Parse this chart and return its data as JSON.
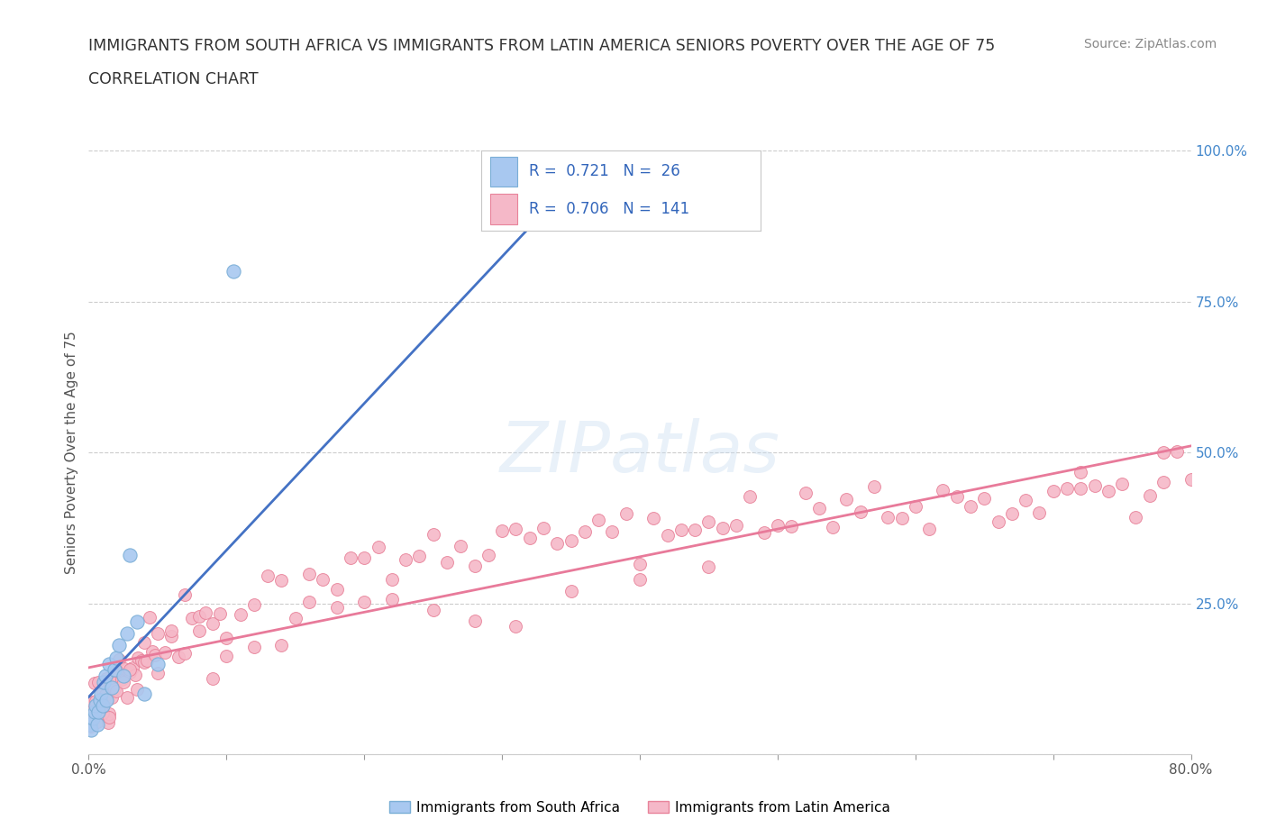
{
  "title_line1": "IMMIGRANTS FROM SOUTH AFRICA VS IMMIGRANTS FROM LATIN AMERICA SENIORS POVERTY OVER THE AGE OF 75",
  "title_line2": "CORRELATION CHART",
  "source_text": "Source: ZipAtlas.com",
  "ylabel": "Seniors Poverty Over the Age of 75",
  "xlim": [
    0.0,
    0.8
  ],
  "ylim": [
    0.0,
    1.0
  ],
  "south_africa_R": 0.721,
  "south_africa_N": 26,
  "latin_america_R": 0.706,
  "latin_america_N": 141,
  "south_africa_color": "#a8c8f0",
  "south_africa_edge": "#7aaed6",
  "latin_america_color": "#f5b8c8",
  "latin_america_edge": "#e8839a",
  "south_africa_line_color": "#4472c4",
  "latin_america_line_color": "#e87a9a",
  "background_color": "#ffffff",
  "grid_color": "#cccccc",
  "sa_x": [
    0.001,
    0.002,
    0.003,
    0.004,
    0.005,
    0.006,
    0.007,
    0.008,
    0.009,
    0.01,
    0.011,
    0.012,
    0.013,
    0.015,
    0.017,
    0.019,
    0.02,
    0.022,
    0.025,
    0.028,
    0.03,
    0.035,
    0.04,
    0.05,
    0.105,
    0.38
  ],
  "sa_y": [
    0.05,
    0.04,
    0.06,
    0.07,
    0.08,
    0.05,
    0.07,
    0.09,
    0.1,
    0.08,
    0.12,
    0.13,
    0.09,
    0.15,
    0.11,
    0.14,
    0.16,
    0.18,
    0.13,
    0.2,
    0.33,
    0.22,
    0.1,
    0.15,
    0.8,
    0.9
  ],
  "la_x": [
    0.001,
    0.002,
    0.003,
    0.004,
    0.005,
    0.006,
    0.007,
    0.008,
    0.009,
    0.01,
    0.011,
    0.012,
    0.013,
    0.014,
    0.015,
    0.016,
    0.017,
    0.018,
    0.019,
    0.02,
    0.022,
    0.024,
    0.026,
    0.028,
    0.03,
    0.032,
    0.034,
    0.036,
    0.038,
    0.04,
    0.042,
    0.044,
    0.046,
    0.048,
    0.05,
    0.055,
    0.06,
    0.065,
    0.07,
    0.075,
    0.08,
    0.085,
    0.09,
    0.095,
    0.1,
    0.11,
    0.12,
    0.13,
    0.14,
    0.15,
    0.16,
    0.17,
    0.18,
    0.19,
    0.2,
    0.21,
    0.22,
    0.23,
    0.24,
    0.25,
    0.26,
    0.27,
    0.28,
    0.29,
    0.3,
    0.31,
    0.32,
    0.33,
    0.34,
    0.35,
    0.36,
    0.37,
    0.38,
    0.39,
    0.4,
    0.41,
    0.42,
    0.43,
    0.44,
    0.45,
    0.46,
    0.47,
    0.48,
    0.49,
    0.5,
    0.51,
    0.52,
    0.53,
    0.54,
    0.55,
    0.56,
    0.57,
    0.58,
    0.59,
    0.6,
    0.61,
    0.62,
    0.63,
    0.64,
    0.65,
    0.66,
    0.67,
    0.68,
    0.69,
    0.7,
    0.71,
    0.72,
    0.73,
    0.74,
    0.75,
    0.76,
    0.77,
    0.78,
    0.79,
    0.8,
    0.005,
    0.01,
    0.015,
    0.02,
    0.025,
    0.03,
    0.035,
    0.04,
    0.05,
    0.06,
    0.07,
    0.08,
    0.09,
    0.1,
    0.12,
    0.14,
    0.16,
    0.18,
    0.2,
    0.22,
    0.25,
    0.28,
    0.31,
    0.35,
    0.4,
    0.45
  ],
  "la_y": [
    0.06,
    0.05,
    0.07,
    0.08,
    0.09,
    0.06,
    0.08,
    0.07,
    0.1,
    0.09,
    0.1,
    0.11,
    0.12,
    0.1,
    0.11,
    0.13,
    0.12,
    0.11,
    0.13,
    0.14,
    0.12,
    0.13,
    0.14,
    0.13,
    0.15,
    0.14,
    0.16,
    0.15,
    0.17,
    0.16,
    0.17,
    0.18,
    0.17,
    0.19,
    0.18,
    0.2,
    0.19,
    0.21,
    0.2,
    0.22,
    0.21,
    0.23,
    0.22,
    0.24,
    0.23,
    0.25,
    0.26,
    0.27,
    0.28,
    0.27,
    0.29,
    0.3,
    0.29,
    0.31,
    0.3,
    0.32,
    0.31,
    0.33,
    0.32,
    0.34,
    0.33,
    0.35,
    0.34,
    0.36,
    0.35,
    0.34,
    0.36,
    0.35,
    0.34,
    0.37,
    0.36,
    0.35,
    0.37,
    0.36,
    0.38,
    0.37,
    0.36,
    0.38,
    0.37,
    0.36,
    0.38,
    0.37,
    0.39,
    0.38,
    0.4,
    0.39,
    0.41,
    0.4,
    0.39,
    0.41,
    0.4,
    0.42,
    0.41,
    0.4,
    0.42,
    0.41,
    0.43,
    0.42,
    0.41,
    0.43,
    0.42,
    0.41,
    0.43,
    0.42,
    0.44,
    0.43,
    0.42,
    0.44,
    0.43,
    0.45,
    0.44,
    0.43,
    0.45,
    0.44,
    0.46,
    0.08,
    0.07,
    0.09,
    0.11,
    0.1,
    0.12,
    0.13,
    0.15,
    0.17,
    0.19,
    0.21,
    0.23,
    0.14,
    0.16,
    0.19,
    0.22,
    0.25,
    0.27,
    0.24,
    0.28,
    0.2,
    0.24,
    0.22,
    0.25,
    0.32,
    0.38
  ]
}
